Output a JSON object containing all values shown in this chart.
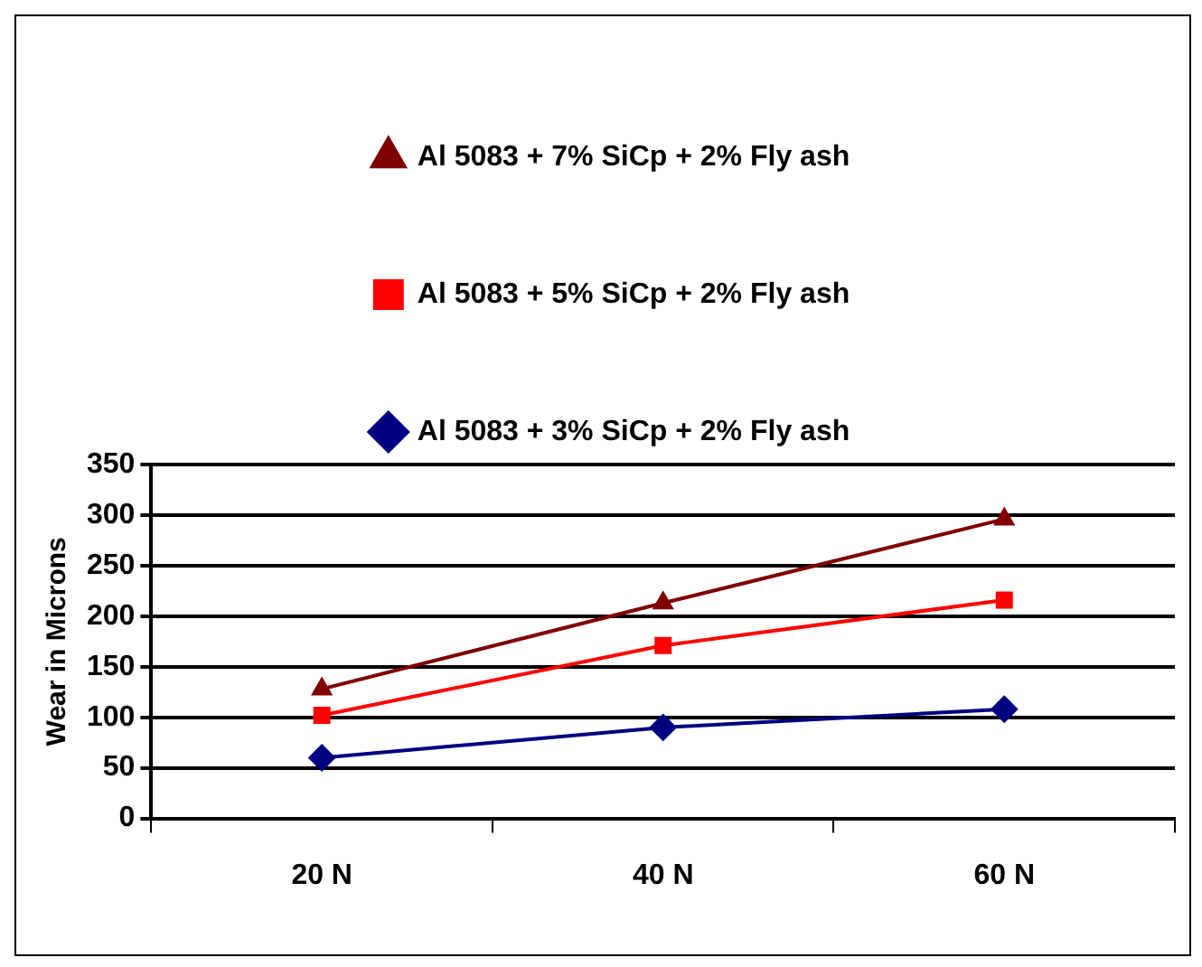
{
  "chart_data": {
    "type": "line",
    "ylabel": "Wear in Microns",
    "categories": [
      "20 N",
      "40 N",
      "60 N"
    ],
    "series": [
      {
        "name": "Al 5083 + 7% SiCp + 2% Fly ash",
        "color": "#800000",
        "marker": "triangle",
        "values": [
          128,
          213,
          296
        ]
      },
      {
        "name": "Al 5083 + 5% SiCp + 2% Fly ash",
        "color": "#ff0000",
        "marker": "square",
        "values": [
          102,
          171,
          216
        ]
      },
      {
        "name": "Al 5083 + 3% SiCp + 2% Fly ash",
        "color": "#000080",
        "marker": "diamond",
        "values": [
          60,
          90,
          108
        ]
      }
    ],
    "ylim": [
      0,
      350
    ],
    "yticks": [
      0,
      50,
      100,
      150,
      200,
      250,
      300,
      350
    ],
    "grid": "y",
    "legend": "top",
    "line_style": "solid"
  }
}
